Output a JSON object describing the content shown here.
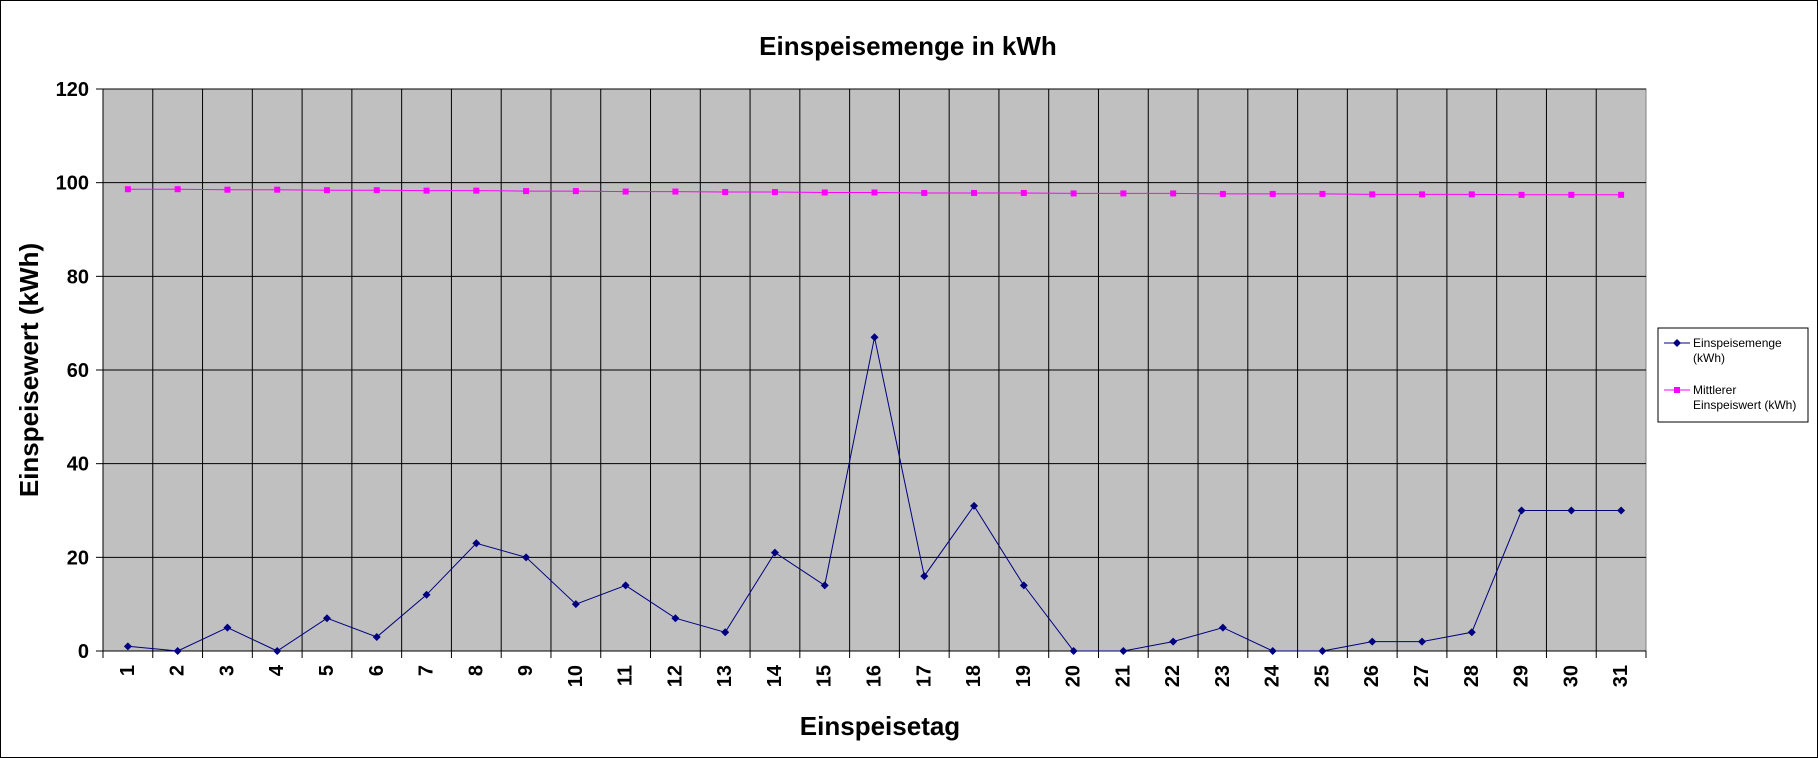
{
  "chart_data": {
    "type": "line",
    "title": "Einspeisemenge in kWh",
    "xlabel": "Einspeisetag",
    "ylabel": "Einspeisewert  (kWh)",
    "categories": [
      "1",
      "2",
      "3",
      "4",
      "5",
      "6",
      "7",
      "8",
      "9",
      "10",
      "11",
      "12",
      "13",
      "14",
      "15",
      "16",
      "17",
      "18",
      "19",
      "20",
      "21",
      "22",
      "23",
      "24",
      "25",
      "26",
      "27",
      "28",
      "29",
      "30",
      "31"
    ],
    "ylim": [
      0,
      120
    ],
    "yticks": [
      "0",
      "20",
      "40",
      "60",
      "80",
      "100",
      "120"
    ],
    "grid": true,
    "plot_background": "#c0c0c0",
    "legend_position": "right",
    "series": [
      {
        "name": "Einspeisemenge (kWh)",
        "legend_lines": [
          "Einspeisemenge",
          "(kWh)"
        ],
        "color": "#000080",
        "marker": "diamond",
        "values": [
          1,
          0,
          5,
          0,
          7,
          3,
          12,
          23,
          20,
          10,
          14,
          7,
          4,
          21,
          14,
          67,
          16,
          31,
          14,
          0,
          0,
          2,
          5,
          0,
          0,
          2,
          2,
          4,
          30,
          30,
          30
        ]
      },
      {
        "name": "Mittlerer Einspeiswert (kWh)",
        "legend_lines": [
          "Mittlerer",
          "Einspeiswert (kWh)"
        ],
        "color": "#ff00ff",
        "marker": "square",
        "values": [
          98.6,
          98.6,
          98.5,
          98.5,
          98.4,
          98.4,
          98.3,
          98.3,
          98.2,
          98.2,
          98.1,
          98.1,
          98.0,
          98.0,
          97.9,
          97.9,
          97.8,
          97.8,
          97.8,
          97.7,
          97.7,
          97.7,
          97.6,
          97.6,
          97.6,
          97.5,
          97.5,
          97.5,
          97.4,
          97.4,
          97.4
        ]
      }
    ]
  }
}
